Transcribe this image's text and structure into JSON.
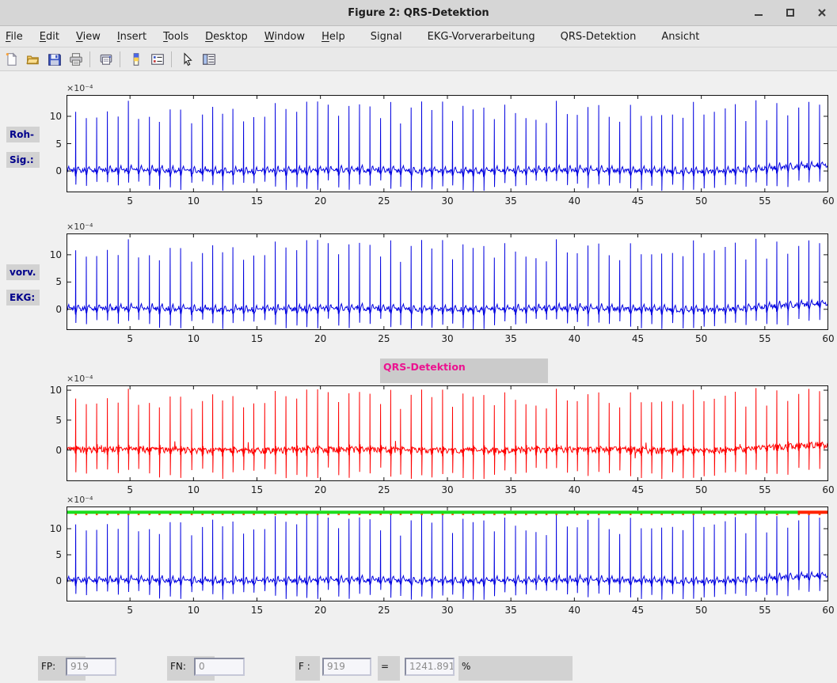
{
  "window": {
    "title": "Figure 2: QRS-Detektion",
    "controls": [
      "minimize",
      "maximize",
      "close"
    ]
  },
  "menu": {
    "items": [
      {
        "label": "File",
        "mnemonic": true,
        "custom": false
      },
      {
        "label": "Edit",
        "mnemonic": true,
        "custom": false
      },
      {
        "label": "View",
        "mnemonic": true,
        "custom": false
      },
      {
        "label": "Insert",
        "mnemonic": true,
        "custom": false
      },
      {
        "label": "Tools",
        "mnemonic": true,
        "custom": false
      },
      {
        "label": "Desktop",
        "mnemonic": true,
        "custom": false
      },
      {
        "label": "Window",
        "mnemonic": true,
        "custom": false
      },
      {
        "label": "Help",
        "mnemonic": true,
        "custom": false
      },
      {
        "label": "Signal",
        "mnemonic": false,
        "custom": true
      },
      {
        "label": "EKG-Vorverarbeitung",
        "mnemonic": false,
        "custom": true
      },
      {
        "label": "QRS-Detektion",
        "mnemonic": false,
        "custom": true
      },
      {
        "label": "Ansicht",
        "mnemonic": false,
        "custom": true
      }
    ]
  },
  "toolbar": {
    "buttons": [
      "new-figure",
      "open-file",
      "save-figure",
      "print-figure",
      "print-preview",
      "insert-colorbar",
      "insert-legend",
      "pointer",
      "property-editor"
    ]
  },
  "side_labels": {
    "roh": "Roh-",
    "sig": "Sig.:",
    "vorv": "vorv.",
    "ekg": "EKG:"
  },
  "qrs_title": "QRS-Detektion",
  "stats": {
    "fp_label": "FP:",
    "fp_value": "919",
    "fn_label": "FN:",
    "fn_value": "0",
    "f_label": "F :",
    "f_value": "919",
    "equals": "=",
    "ratio_value": "1241.891",
    "percent": "%"
  },
  "colors": {
    "figure_background": "#f0f0f0",
    "titlebar": "#d6d6d6",
    "panel_gray": "#d2d2d2",
    "signal_blue": "#0000e0",
    "signal_red": "#ff0000",
    "detection_green": "#1ddd1d",
    "detection_fail_red": "#ff2400",
    "label_navy": "#00008b",
    "qrs_title_magenta": "#ec1390"
  },
  "chart_data": [
    {
      "type": "line",
      "name": "roh-signal",
      "series_color": "#0000e0",
      "x_range": [
        0,
        60
      ],
      "y_range": [
        -3.9,
        13.9
      ],
      "x_ticks": [
        5,
        10,
        15,
        20,
        25,
        30,
        35,
        40,
        45,
        50,
        55,
        60
      ],
      "y_ticks": [
        0,
        5,
        10
      ],
      "y_scale_label": "×10⁻⁴",
      "grid": false,
      "legend": null,
      "signal": {
        "kind": "ecg",
        "seed": 7,
        "beat_interval_s": 0.82,
        "beats_approx": 73,
        "r_amp_range": [
          8.6,
          12.8
        ],
        "s_depth_range": [
          1.8,
          3.6
        ],
        "p_amp": 0.45,
        "t_amp": 0.85,
        "noise_amp": 0.38,
        "units": "1e-4"
      }
    },
    {
      "type": "line",
      "name": "vorverarbeitetes-ekg",
      "series_color": "#0000e0",
      "x_range": [
        0,
        60
      ],
      "y_range": [
        -3.8,
        13.9
      ],
      "x_ticks": [
        5,
        10,
        15,
        20,
        25,
        30,
        35,
        40,
        45,
        50,
        55,
        60
      ],
      "y_ticks": [
        0,
        5,
        10
      ],
      "y_scale_label": "×10⁻⁴",
      "grid": false,
      "legend": null,
      "signal": {
        "kind": "ecg",
        "seed": 7,
        "beat_interval_s": 0.82,
        "beats_approx": 73,
        "r_amp_range": [
          8.6,
          12.8
        ],
        "s_depth_range": [
          1.8,
          3.6
        ],
        "p_amp": 0.45,
        "t_amp": 0.85,
        "noise_amp": 0.38,
        "units": "1e-4"
      }
    },
    {
      "type": "line",
      "name": "qrs-detektion-signal",
      "series_color": "#ff0000",
      "title": "QRS-Detektion",
      "x_range": [
        0,
        60
      ],
      "y_range": [
        -5.2,
        10.8
      ],
      "x_ticks": [
        5,
        10,
        15,
        20,
        25,
        30,
        35,
        40,
        45,
        50,
        55,
        60
      ],
      "y_ticks": [
        0,
        5,
        10
      ],
      "y_scale_label": "×10⁻⁴",
      "grid": false,
      "legend": null,
      "signal": {
        "kind": "ecg-biphasic",
        "seed": 7,
        "beat_interval_s": 0.82,
        "beats_approx": 73,
        "r_amp_range": [
          6.8,
          10.2
        ],
        "s_depth_range": [
          3.0,
          4.8
        ],
        "p_amp": 0.2,
        "t_amp": 0.4,
        "noise_amp": 0.55,
        "units": "1e-4"
      }
    },
    {
      "type": "line",
      "name": "detektion-overlay",
      "series_color": "#0000e0",
      "x_range": [
        0,
        60
      ],
      "y_range": [
        -3.95,
        14.25
      ],
      "x_ticks": [
        5,
        10,
        15,
        20,
        25,
        30,
        35,
        40,
        45,
        50,
        55,
        60
      ],
      "y_ticks": [
        0,
        5,
        10
      ],
      "y_scale_label": "×10⁻⁴",
      "grid": false,
      "legend": null,
      "signal": {
        "kind": "ecg",
        "seed": 7,
        "beat_interval_s": 0.82,
        "beats_approx": 73,
        "r_amp_range": [
          8.6,
          12.8
        ],
        "s_depth_range": [
          1.8,
          3.6
        ],
        "p_amp": 0.45,
        "t_amp": 0.85,
        "noise_amp": 0.38,
        "units": "1e-4"
      },
      "detection": {
        "line_value": 13.15,
        "line_color": "#1ddd1d",
        "fail_color": "#ff2400",
        "fail_start_x": 57.6,
        "beat_marker_color": "#ff4400"
      }
    }
  ]
}
